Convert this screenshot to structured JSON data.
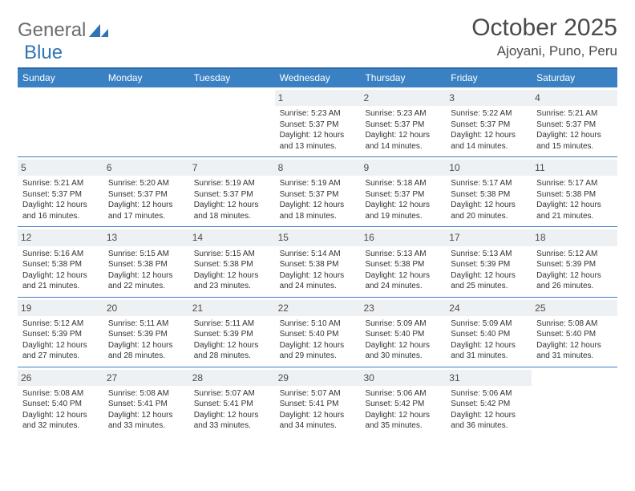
{
  "brand": {
    "part1": "General",
    "part2": "Blue"
  },
  "title": "October 2025",
  "location": "Ajoyani, Puno, Peru",
  "colors": {
    "header_bg": "#3a81c4",
    "header_border": "#2f6aa8",
    "daynum_bg": "#eef1f3",
    "text": "#333333",
    "brand_gray": "#6b6b6b",
    "brand_blue": "#2f74b5"
  },
  "weekdays": [
    "Sunday",
    "Monday",
    "Tuesday",
    "Wednesday",
    "Thursday",
    "Friday",
    "Saturday"
  ],
  "weeks": [
    [
      {
        "day": "",
        "sunrise": "",
        "sunset": "",
        "daylight": ""
      },
      {
        "day": "",
        "sunrise": "",
        "sunset": "",
        "daylight": ""
      },
      {
        "day": "",
        "sunrise": "",
        "sunset": "",
        "daylight": ""
      },
      {
        "day": "1",
        "sunrise": "Sunrise: 5:23 AM",
        "sunset": "Sunset: 5:37 PM",
        "daylight": "Daylight: 12 hours and 13 minutes."
      },
      {
        "day": "2",
        "sunrise": "Sunrise: 5:23 AM",
        "sunset": "Sunset: 5:37 PM",
        "daylight": "Daylight: 12 hours and 14 minutes."
      },
      {
        "day": "3",
        "sunrise": "Sunrise: 5:22 AM",
        "sunset": "Sunset: 5:37 PM",
        "daylight": "Daylight: 12 hours and 14 minutes."
      },
      {
        "day": "4",
        "sunrise": "Sunrise: 5:21 AM",
        "sunset": "Sunset: 5:37 PM",
        "daylight": "Daylight: 12 hours and 15 minutes."
      }
    ],
    [
      {
        "day": "5",
        "sunrise": "Sunrise: 5:21 AM",
        "sunset": "Sunset: 5:37 PM",
        "daylight": "Daylight: 12 hours and 16 minutes."
      },
      {
        "day": "6",
        "sunrise": "Sunrise: 5:20 AM",
        "sunset": "Sunset: 5:37 PM",
        "daylight": "Daylight: 12 hours and 17 minutes."
      },
      {
        "day": "7",
        "sunrise": "Sunrise: 5:19 AM",
        "sunset": "Sunset: 5:37 PM",
        "daylight": "Daylight: 12 hours and 18 minutes."
      },
      {
        "day": "8",
        "sunrise": "Sunrise: 5:19 AM",
        "sunset": "Sunset: 5:37 PM",
        "daylight": "Daylight: 12 hours and 18 minutes."
      },
      {
        "day": "9",
        "sunrise": "Sunrise: 5:18 AM",
        "sunset": "Sunset: 5:37 PM",
        "daylight": "Daylight: 12 hours and 19 minutes."
      },
      {
        "day": "10",
        "sunrise": "Sunrise: 5:17 AM",
        "sunset": "Sunset: 5:38 PM",
        "daylight": "Daylight: 12 hours and 20 minutes."
      },
      {
        "day": "11",
        "sunrise": "Sunrise: 5:17 AM",
        "sunset": "Sunset: 5:38 PM",
        "daylight": "Daylight: 12 hours and 21 minutes."
      }
    ],
    [
      {
        "day": "12",
        "sunrise": "Sunrise: 5:16 AM",
        "sunset": "Sunset: 5:38 PM",
        "daylight": "Daylight: 12 hours and 21 minutes."
      },
      {
        "day": "13",
        "sunrise": "Sunrise: 5:15 AM",
        "sunset": "Sunset: 5:38 PM",
        "daylight": "Daylight: 12 hours and 22 minutes."
      },
      {
        "day": "14",
        "sunrise": "Sunrise: 5:15 AM",
        "sunset": "Sunset: 5:38 PM",
        "daylight": "Daylight: 12 hours and 23 minutes."
      },
      {
        "day": "15",
        "sunrise": "Sunrise: 5:14 AM",
        "sunset": "Sunset: 5:38 PM",
        "daylight": "Daylight: 12 hours and 24 minutes."
      },
      {
        "day": "16",
        "sunrise": "Sunrise: 5:13 AM",
        "sunset": "Sunset: 5:38 PM",
        "daylight": "Daylight: 12 hours and 24 minutes."
      },
      {
        "day": "17",
        "sunrise": "Sunrise: 5:13 AM",
        "sunset": "Sunset: 5:39 PM",
        "daylight": "Daylight: 12 hours and 25 minutes."
      },
      {
        "day": "18",
        "sunrise": "Sunrise: 5:12 AM",
        "sunset": "Sunset: 5:39 PM",
        "daylight": "Daylight: 12 hours and 26 minutes."
      }
    ],
    [
      {
        "day": "19",
        "sunrise": "Sunrise: 5:12 AM",
        "sunset": "Sunset: 5:39 PM",
        "daylight": "Daylight: 12 hours and 27 minutes."
      },
      {
        "day": "20",
        "sunrise": "Sunrise: 5:11 AM",
        "sunset": "Sunset: 5:39 PM",
        "daylight": "Daylight: 12 hours and 28 minutes."
      },
      {
        "day": "21",
        "sunrise": "Sunrise: 5:11 AM",
        "sunset": "Sunset: 5:39 PM",
        "daylight": "Daylight: 12 hours and 28 minutes."
      },
      {
        "day": "22",
        "sunrise": "Sunrise: 5:10 AM",
        "sunset": "Sunset: 5:40 PM",
        "daylight": "Daylight: 12 hours and 29 minutes."
      },
      {
        "day": "23",
        "sunrise": "Sunrise: 5:09 AM",
        "sunset": "Sunset: 5:40 PM",
        "daylight": "Daylight: 12 hours and 30 minutes."
      },
      {
        "day": "24",
        "sunrise": "Sunrise: 5:09 AM",
        "sunset": "Sunset: 5:40 PM",
        "daylight": "Daylight: 12 hours and 31 minutes."
      },
      {
        "day": "25",
        "sunrise": "Sunrise: 5:08 AM",
        "sunset": "Sunset: 5:40 PM",
        "daylight": "Daylight: 12 hours and 31 minutes."
      }
    ],
    [
      {
        "day": "26",
        "sunrise": "Sunrise: 5:08 AM",
        "sunset": "Sunset: 5:40 PM",
        "daylight": "Daylight: 12 hours and 32 minutes."
      },
      {
        "day": "27",
        "sunrise": "Sunrise: 5:08 AM",
        "sunset": "Sunset: 5:41 PM",
        "daylight": "Daylight: 12 hours and 33 minutes."
      },
      {
        "day": "28",
        "sunrise": "Sunrise: 5:07 AM",
        "sunset": "Sunset: 5:41 PM",
        "daylight": "Daylight: 12 hours and 33 minutes."
      },
      {
        "day": "29",
        "sunrise": "Sunrise: 5:07 AM",
        "sunset": "Sunset: 5:41 PM",
        "daylight": "Daylight: 12 hours and 34 minutes."
      },
      {
        "day": "30",
        "sunrise": "Sunrise: 5:06 AM",
        "sunset": "Sunset: 5:42 PM",
        "daylight": "Daylight: 12 hours and 35 minutes."
      },
      {
        "day": "31",
        "sunrise": "Sunrise: 5:06 AM",
        "sunset": "Sunset: 5:42 PM",
        "daylight": "Daylight: 12 hours and 36 minutes."
      },
      {
        "day": "",
        "sunrise": "",
        "sunset": "",
        "daylight": ""
      }
    ]
  ]
}
